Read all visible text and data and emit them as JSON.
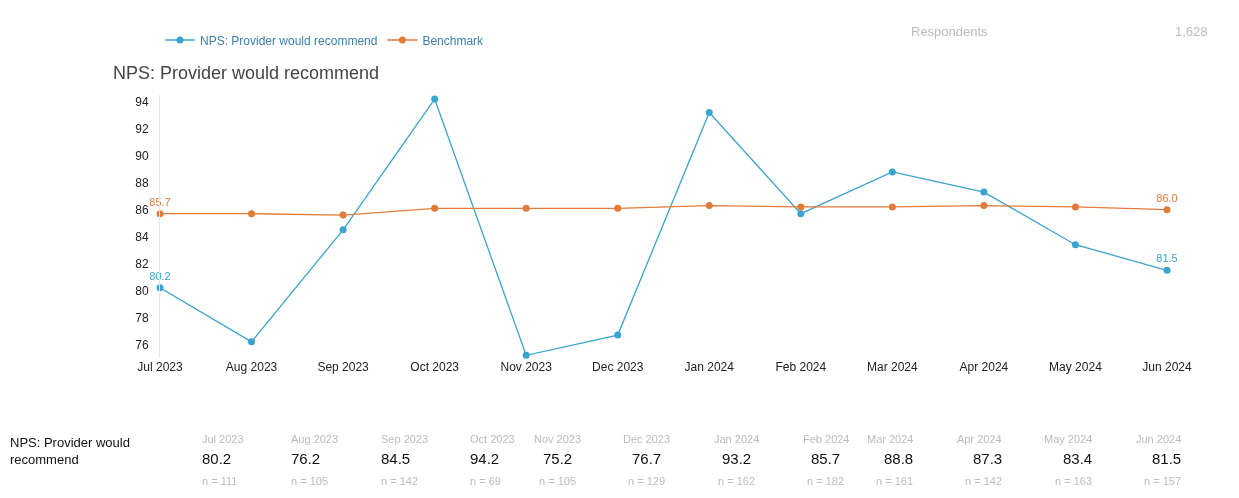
{
  "chart_data": {
    "type": "line",
    "title": "NPS: Provider would recommend",
    "categories": [
      "Jul 2023",
      "Aug 2023",
      "Sep 2023",
      "Oct 2023",
      "Nov 2023",
      "Dec 2023",
      "Jan 2024",
      "Feb 2024",
      "Mar 2024",
      "Apr 2024",
      "May 2024",
      "Jun 2024"
    ],
    "series": [
      {
        "name": "NPS: Provider would recommend",
        "color": "#3aa3cf",
        "values": [
          80.2,
          76.2,
          84.5,
          94.2,
          75.2,
          76.7,
          93.2,
          85.7,
          88.8,
          87.3,
          83.4,
          81.5
        ],
        "value_labels": [
          "80.2",
          null,
          null,
          null,
          null,
          null,
          null,
          null,
          null,
          null,
          null,
          "81.5"
        ]
      },
      {
        "name": "Benchmark",
        "color": "#e07b39",
        "values": [
          85.7,
          85.7,
          85.6,
          86.1,
          86.1,
          86.1,
          86.3,
          86.2,
          86.2,
          86.3,
          86.2,
          86.0
        ],
        "value_labels": [
          "85.7",
          null,
          null,
          null,
          null,
          null,
          null,
          null,
          null,
          null,
          null,
          "86.0"
        ]
      }
    ],
    "ylim": [
      75,
      94.5
    ],
    "yticks": [
      76,
      78,
      80,
      82,
      84,
      86,
      88,
      90,
      92,
      94
    ],
    "legend": "top left",
    "marker": "circle",
    "line_style": "solid",
    "annotations": [
      "Respondents",
      "1,628",
      "n = 111",
      "n = 105",
      "n = 142",
      "n = 69",
      "n = 105",
      "n = 129",
      "n = 162",
      "n = 182",
      "n = 161",
      "n = 142",
      "n = 163",
      "n = 157",
      "80.2",
      "76.2",
      "84.5",
      "94.2",
      "75.2",
      "76.7",
      "93.2",
      "85.7",
      "88.8",
      "87.3",
      "83.4",
      "81.5"
    ]
  }
}
